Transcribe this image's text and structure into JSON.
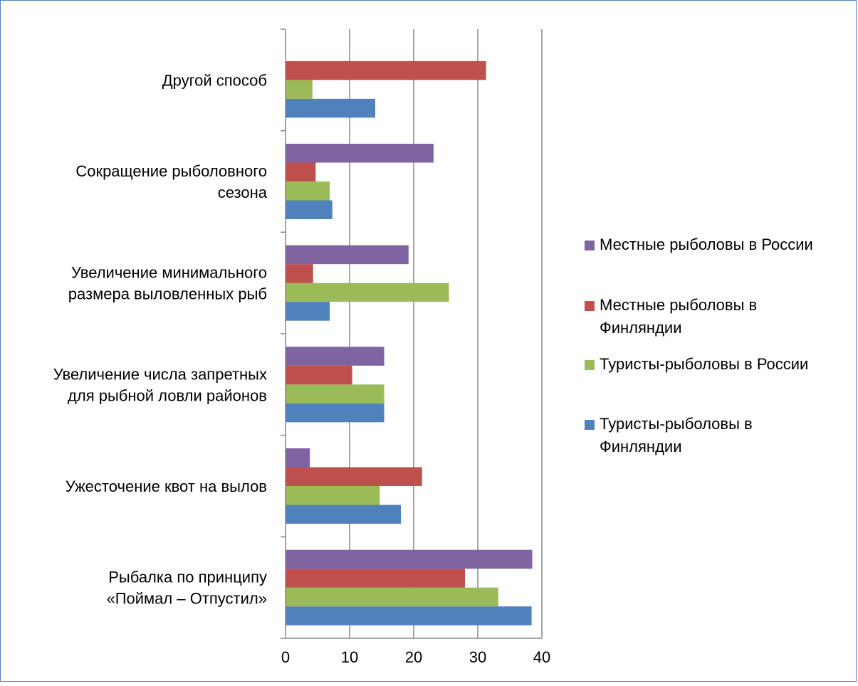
{
  "chart_data": {
    "type": "bar",
    "orientation": "horizontal",
    "categories": [
      [
        "Рыбалка по принципу",
        "«Поймал – Отпустил»"
      ],
      [
        "Ужесточение квот на вылов"
      ],
      [
        "Увеличение числа запретных",
        "для рыбной ловли районов"
      ],
      [
        "Увеличение минимального",
        "размера выловленных рыб"
      ],
      [
        "Сокращение рыболовного",
        "сезона"
      ],
      [
        "Другой способ"
      ]
    ],
    "series": [
      {
        "name": "Туристы-рыболовы в Финляндии",
        "color": "#4f81bd",
        "values": [
          38.4,
          18.0,
          15.4,
          6.9,
          7.3,
          14.0
        ]
      },
      {
        "name": "Туристы-рыболовы в России",
        "color": "#9bbb59",
        "values": [
          33.2,
          14.7,
          15.4,
          25.5,
          6.9,
          4.2
        ]
      },
      {
        "name": "Местные рыболовы в Финляндии",
        "color": "#c0504d",
        "values": [
          28.0,
          21.3,
          10.4,
          4.3,
          4.7,
          31.3
        ]
      },
      {
        "name": "Местные рыболовы в России",
        "color": "#8064a2",
        "values": [
          38.5,
          3.8,
          15.4,
          19.2,
          23.1,
          null
        ]
      }
    ],
    "xlim": [
      0,
      40
    ],
    "xticks": [
      0,
      10,
      20,
      30,
      40
    ],
    "grid": "vertical",
    "legend_position": "right",
    "legend_entries": [
      [
        "Местные рыболовы в России"
      ],
      [
        "Местные рыболовы в",
        "Финляндии"
      ],
      [
        "Туристы-рыболовы в России"
      ],
      [
        "Туристы-рыболовы в",
        "Финляндии"
      ]
    ]
  }
}
